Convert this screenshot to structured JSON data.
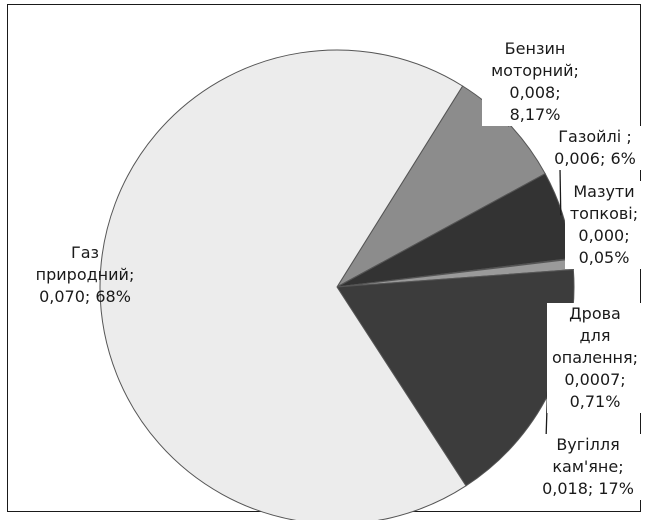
{
  "chart_data": {
    "type": "pie",
    "title": "",
    "legend": "none",
    "slices": [
      {
        "name": "Бензин моторний",
        "value": 0.008,
        "percent": 8.17,
        "color": "#8c8c8c",
        "label_lines": [
          "Бензин",
          "моторний;",
          "0,008;",
          "8,17%"
        ]
      },
      {
        "name": "Газойлі",
        "value": 0.006,
        "percent": 6,
        "color": "#333333",
        "label_lines": [
          "Газойлі ;",
          "0,006; 6%"
        ]
      },
      {
        "name": "Мазути топкові",
        "value": 0.0,
        "percent": 0.05,
        "color": "#141414",
        "label_lines": [
          "Мазути",
          "топкові;",
          "0,000;",
          "0,05%"
        ]
      },
      {
        "name": "Дрова для опалення",
        "value": 0.0007,
        "percent": 0.71,
        "color": "#9a9a9a",
        "label_lines": [
          "Дрова",
          "для",
          "опалення;",
          "0,0007;",
          "0,71%"
        ]
      },
      {
        "name": "Вугілля кам'яне",
        "value": 0.018,
        "percent": 17,
        "color": "#3c3c3c",
        "label_lines": [
          "Вугілля",
          "кам'яне;",
          "0,018; 17%"
        ]
      },
      {
        "name": "Газ природний",
        "value": 0.07,
        "percent": 68,
        "color": "#ececec",
        "label_lines": [
          "Газ",
          "природний;",
          "0,070; 68%"
        ]
      }
    ]
  }
}
